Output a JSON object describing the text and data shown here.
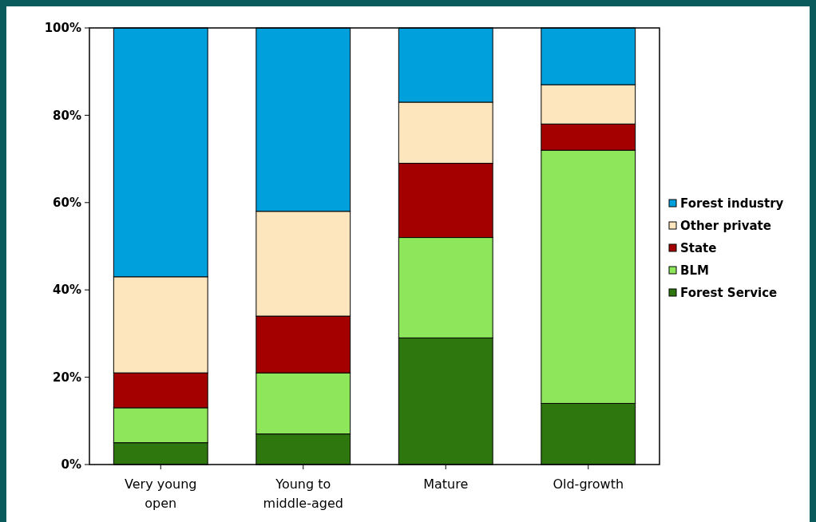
{
  "chart_data": {
    "type": "bar",
    "stacked": true,
    "categories": [
      "Very young\nopen",
      "Young to\nmiddle-aged",
      "Mature",
      "Old-growth"
    ],
    "series": [
      {
        "name": "Forest Service",
        "color": "#2e760e",
        "values": [
          5,
          7,
          29,
          14
        ]
      },
      {
        "name": "BLM",
        "color": "#8ee65a",
        "values": [
          8,
          14,
          23,
          58
        ]
      },
      {
        "name": "State",
        "color": "#a50000",
        "values": [
          8,
          13,
          17,
          6
        ]
      },
      {
        "name": "Other private",
        "color": "#fde5bd",
        "values": [
          22,
          24,
          14,
          9
        ]
      },
      {
        "name": "Forest industry",
        "color": "#00a0dc",
        "values": [
          57,
          42,
          17,
          13
        ]
      }
    ],
    "ylim": [
      0,
      100
    ],
    "yticks": [
      {
        "value": 0,
        "label": "0%"
      },
      {
        "value": 20,
        "label": "20%"
      },
      {
        "value": 40,
        "label": "40%"
      },
      {
        "value": 60,
        "label": "60%"
      },
      {
        "value": 80,
        "label": "80%"
      },
      {
        "value": 100,
        "label": "100%"
      }
    ],
    "grid": false,
    "legend": "right"
  }
}
